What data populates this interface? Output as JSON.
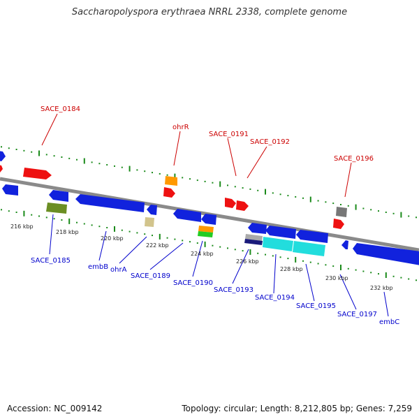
{
  "title": "Saccharopolyspora erythraea NRRL 2338, complete genome",
  "footer": {
    "accession": "Accession: NC_009142",
    "summary": "Topology: circular; Length: 8,212,805 bp; Genes: 7,259"
  },
  "colors": {
    "plus_label": "#cc0000",
    "minus_label": "#0000cc",
    "backbone": "#888888",
    "tick": "#1a8a1a",
    "red": "#ee1111",
    "blue": "#1122dd",
    "cyan": "#22dddd",
    "orange": "#ff9900",
    "olive": "#6b8e23",
    "khaki": "#d2c48c",
    "gray": "#777777",
    "green": "#22cc22",
    "navy": "#1a1a7a"
  },
  "scale_labels": [
    "216 kbp",
    "218 kbp",
    "220 kbp",
    "222 kbp",
    "224 kbp",
    "226 kbp",
    "228 kbp",
    "230 kbp",
    "232 kbp"
  ],
  "plus_gene_labels": [
    "SACE_0184",
    "ohrR",
    "SACE_0191",
    "SACE_0192",
    "SACE_0196"
  ],
  "minus_gene_labels": [
    "SACE_0185",
    "embB",
    "ohrA",
    "SACE_0189",
    "SACE_0190",
    "SACE_0193",
    "SACE_0194",
    "SACE_0195",
    "SACE_0197",
    "embC"
  ]
}
